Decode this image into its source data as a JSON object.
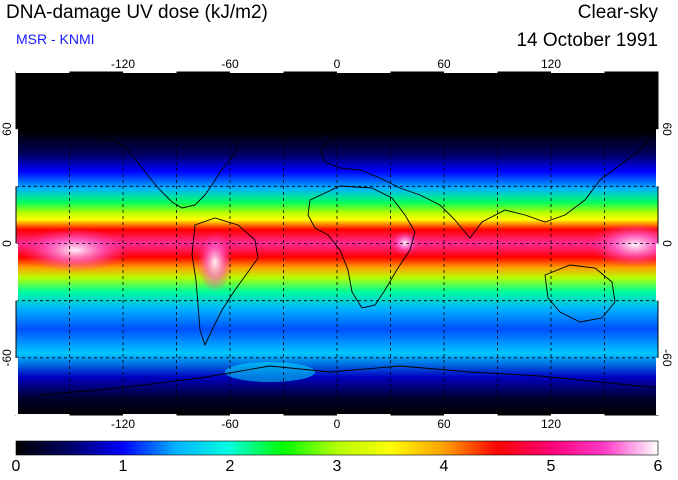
{
  "header": {
    "title": "DNA-damage UV dose (kJ/m2)",
    "source": "MSR - KNMI",
    "condition": "Clear-sky",
    "date": "14 October 1991"
  },
  "map": {
    "projection": "equirectangular",
    "lon_range": [
      -180,
      180
    ],
    "lat_range": [
      -90,
      90
    ],
    "grid_lon": [
      -150,
      -120,
      -90,
      -60,
      -30,
      0,
      30,
      60,
      90,
      120,
      150
    ],
    "grid_lat": [
      -60,
      -30,
      0,
      30,
      60
    ],
    "lon_tick_labels": [
      {
        "value": -120,
        "text": "-120"
      },
      {
        "value": -60,
        "text": "-60"
      },
      {
        "value": 0,
        "text": "0"
      },
      {
        "value": 60,
        "text": "60"
      },
      {
        "value": 120,
        "text": "120"
      }
    ],
    "lat_tick_labels": [
      {
        "value": 60,
        "text": "60"
      },
      {
        "value": 0,
        "text": "0"
      },
      {
        "value": -60,
        "text": "-60"
      }
    ]
  },
  "colorbar": {
    "min": 0,
    "max": 6,
    "labels": [
      "0",
      "1",
      "2",
      "3",
      "4",
      "5",
      "6"
    ],
    "colors": [
      "#000000",
      "#000066",
      "#0000ff",
      "#00b4ff",
      "#00ffdc",
      "#00ff00",
      "#b4ff00",
      "#ffff00",
      "#ffa000",
      "#ff0000",
      "#ff0078",
      "#ff3cc8",
      "#ffffff"
    ]
  }
}
